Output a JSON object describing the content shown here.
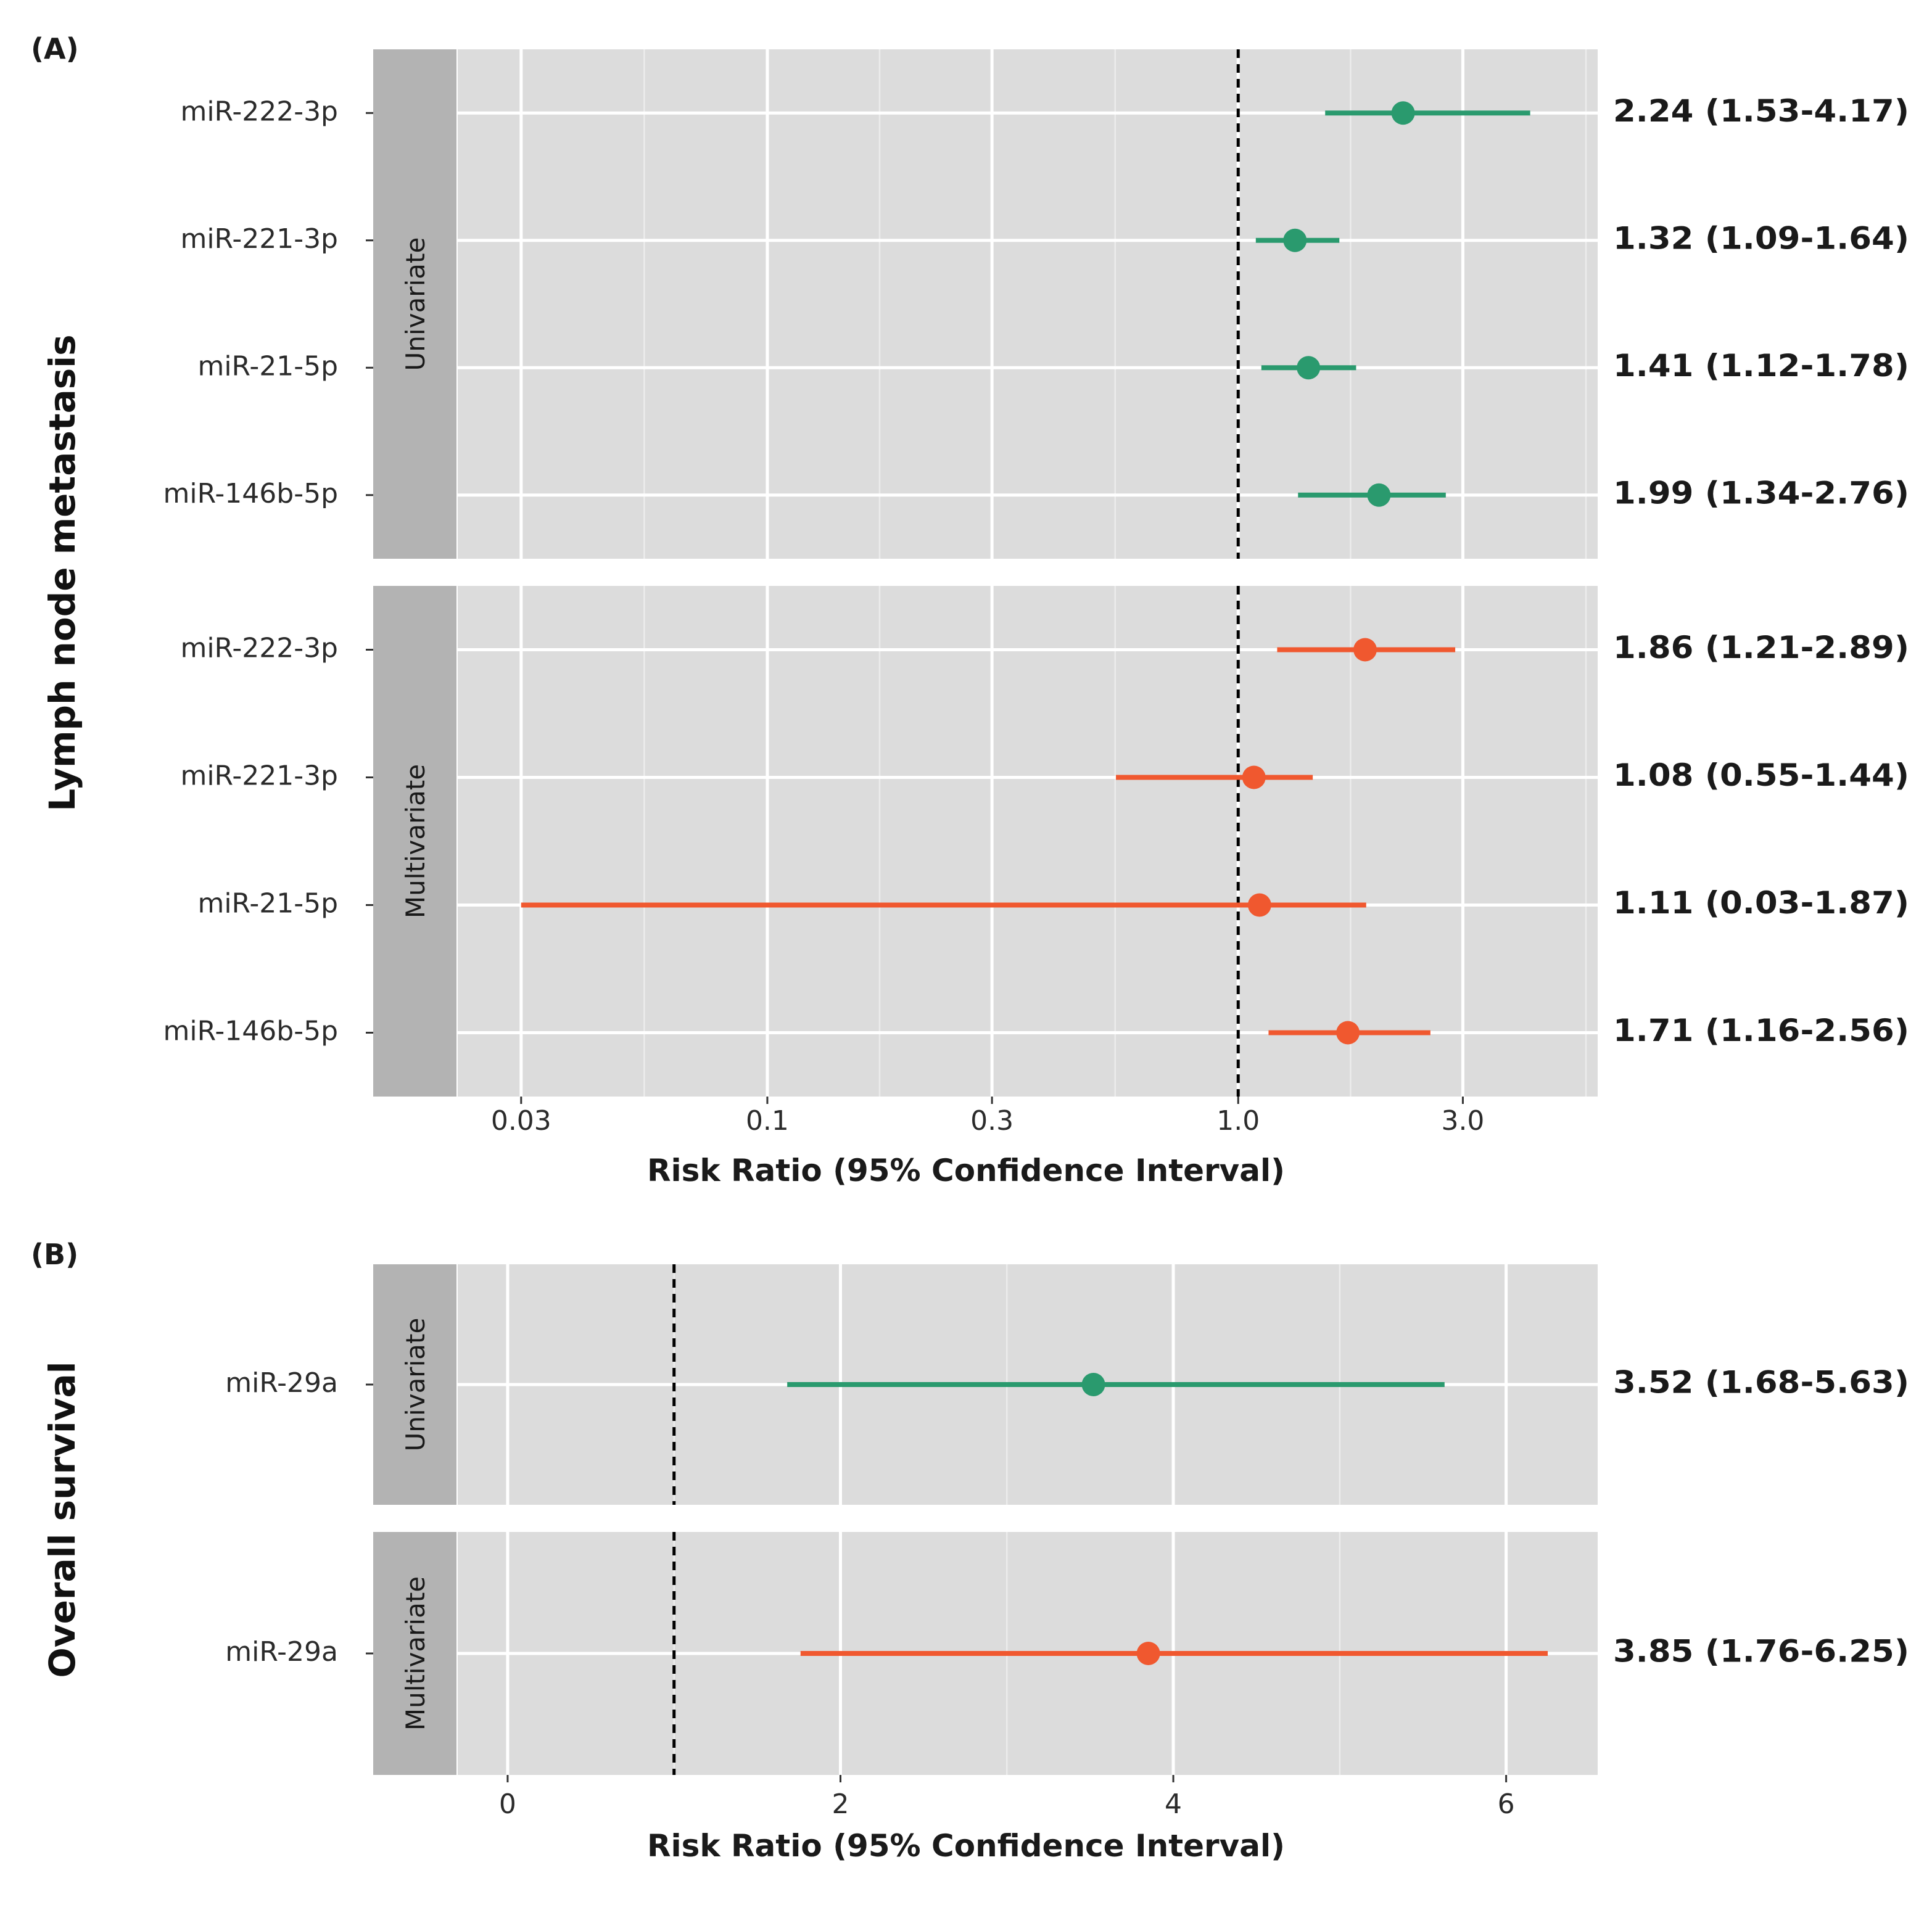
{
  "colors": {
    "univariate": "#2a9a6e",
    "multivariate": "#f0582f",
    "panel_bg": "#dcdcdc",
    "strip_bg": "#b3b3b3",
    "grid": "#ffffff"
  },
  "chart_data": [
    {
      "type": "forest",
      "panel_label": "(A)",
      "outcome_label": "Lymph node metastasis",
      "xlabel": "Risk Ratio (95% Confidence Interval)",
      "x_scale": "log",
      "xlim": [
        0.022,
        5.8
      ],
      "reference_line": 1.0,
      "x_ticks": [
        0.03,
        0.1,
        0.3,
        1.0,
        3.0
      ],
      "x_tick_labels": [
        "0.03",
        "0.1",
        "0.3",
        "1.0",
        "3.0"
      ],
      "groups": [
        {
          "name": "Univariate",
          "color_key": "univariate",
          "rows": [
            {
              "label": "miR-222-3p",
              "estimate": 2.24,
              "lower": 1.53,
              "upper": 4.17,
              "text": "2.24 (1.53-4.17)"
            },
            {
              "label": "miR-221-3p",
              "estimate": 1.32,
              "lower": 1.09,
              "upper": 1.64,
              "text": "1.32 (1.09-1.64)"
            },
            {
              "label": "miR-21-5p",
              "estimate": 1.41,
              "lower": 1.12,
              "upper": 1.78,
              "text": "1.41 (1.12-1.78)"
            },
            {
              "label": "miR-146b-5p",
              "estimate": 1.99,
              "lower": 1.34,
              "upper": 2.76,
              "text": "1.99 (1.34-2.76)"
            }
          ]
        },
        {
          "name": "Multivariate",
          "color_key": "multivariate",
          "rows": [
            {
              "label": "miR-222-3p",
              "estimate": 1.86,
              "lower": 1.21,
              "upper": 2.89,
              "text": "1.86 (1.21-2.89)"
            },
            {
              "label": "miR-221-3p",
              "estimate": 1.08,
              "lower": 0.55,
              "upper": 1.44,
              "text": "1.08 (0.55-1.44)"
            },
            {
              "label": "miR-21-5p",
              "estimate": 1.11,
              "lower": 0.03,
              "upper": 1.87,
              "text": "1.11 (0.03-1.87)"
            },
            {
              "label": "miR-146b-5p",
              "estimate": 1.71,
              "lower": 1.16,
              "upper": 2.56,
              "text": "1.71 (1.16-2.56)"
            }
          ]
        }
      ]
    },
    {
      "type": "forest",
      "panel_label": "(B)",
      "outcome_label": "Overall survival",
      "xlabel": "Risk Ratio (95% Confidence Interval)",
      "x_scale": "linear",
      "xlim": [
        -0.3,
        6.55
      ],
      "reference_line": 1.0,
      "x_ticks": [
        0,
        2,
        4,
        6
      ],
      "x_tick_labels": [
        "0",
        "2",
        "4",
        "6"
      ],
      "groups": [
        {
          "name": "Univariate",
          "color_key": "univariate",
          "rows": [
            {
              "label": "miR-29a",
              "estimate": 3.52,
              "lower": 1.68,
              "upper": 5.63,
              "text": "3.52 (1.68-5.63)"
            }
          ]
        },
        {
          "name": "Multivariate",
          "color_key": "multivariate",
          "rows": [
            {
              "label": "miR-29a",
              "estimate": 3.85,
              "lower": 1.76,
              "upper": 6.25,
              "text": "3.85 (1.76-6.25)"
            }
          ]
        }
      ]
    }
  ]
}
